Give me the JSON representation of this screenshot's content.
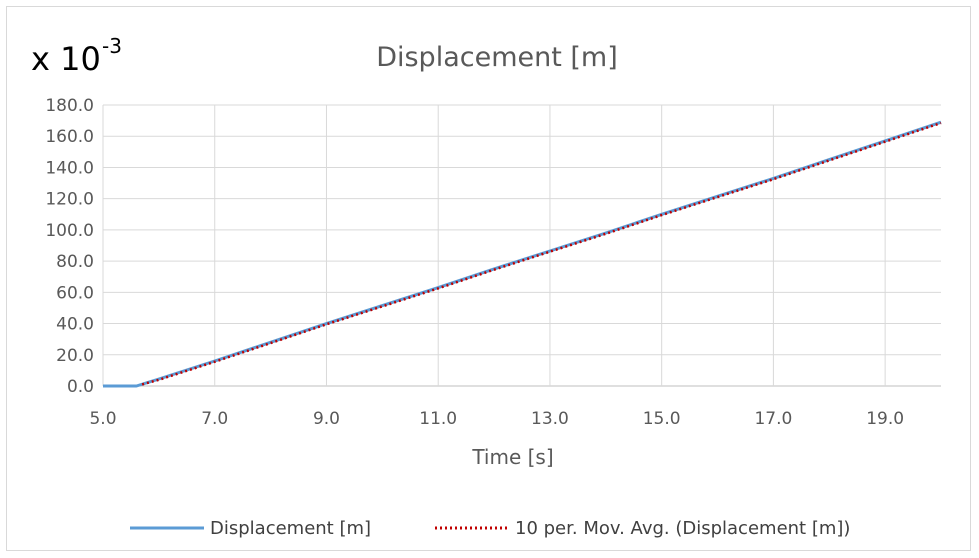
{
  "chart_data": {
    "type": "line",
    "title": "Displacement [m]",
    "multiplier": {
      "base": "x 10",
      "exponent": "-3"
    },
    "xlabel": "Time [s]",
    "ylabel": "",
    "xlim": [
      5.0,
      20.0
    ],
    "ylim": [
      0.0,
      180.0
    ],
    "x_ticks": [
      "5.0",
      "7.0",
      "9.0",
      "11.0",
      "13.0",
      "15.0",
      "17.0",
      "19.0"
    ],
    "y_ticks": [
      "0.0",
      "20.0",
      "40.0",
      "60.0",
      "80.0",
      "100.0",
      "120.0",
      "140.0",
      "160.0",
      "180.0"
    ],
    "grid": true,
    "legend_position": "bottom",
    "series": [
      {
        "name": "Displacement [m]",
        "color": "#5b9bd5",
        "style": "solid",
        "x": [
          5.0,
          5.6,
          6.0,
          7.0,
          8.0,
          9.0,
          10.0,
          11.0,
          12.0,
          13.0,
          14.0,
          15.0,
          16.0,
          17.0,
          18.0,
          19.0,
          20.0
        ],
        "y": [
          0.0,
          0.0,
          4.5,
          16.0,
          28.0,
          40.0,
          51.5,
          63.0,
          75.0,
          86.5,
          98.0,
          110.0,
          121.5,
          133.0,
          145.0,
          157.0,
          169.0
        ]
      },
      {
        "name": "10 per. Mov. Avg. (Displacement [m])",
        "color": "#c00000",
        "style": "dotted",
        "x": [
          5.7,
          6.0,
          7.0,
          8.0,
          9.0,
          10.0,
          11.0,
          12.0,
          13.0,
          14.0,
          15.0,
          16.0,
          17.0,
          18.0,
          19.0,
          20.0
        ],
        "y": [
          1.0,
          4.0,
          15.5,
          27.5,
          39.5,
          51.0,
          62.5,
          74.5,
          86.0,
          97.5,
          109.5,
          121.0,
          132.5,
          144.5,
          156.5,
          168.5
        ]
      }
    ]
  }
}
